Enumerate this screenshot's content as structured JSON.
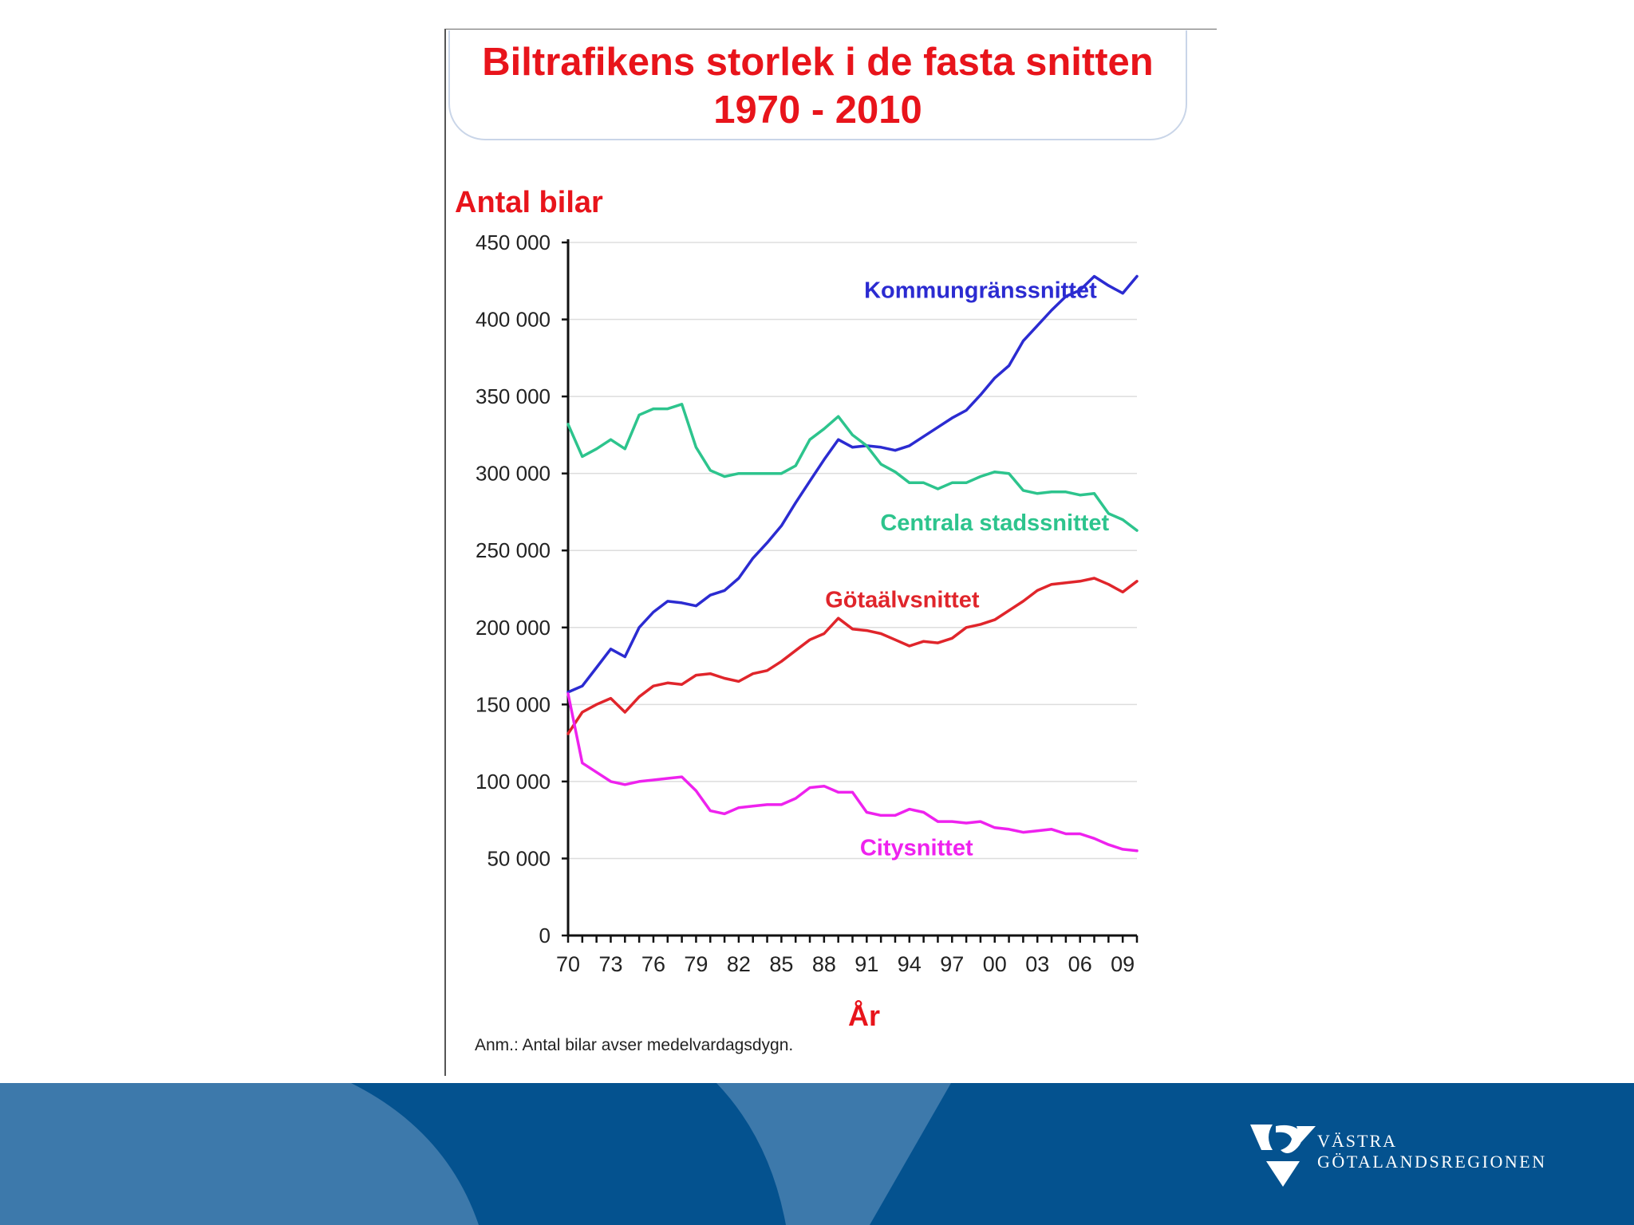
{
  "chart_data": {
    "type": "line",
    "title": "Biltrafikens storlek i de fasta snitten",
    "subtitle": "1970 - 2010",
    "ylabel": "Antal bilar",
    "xlabel": "År",
    "ylim": [
      0,
      450000
    ],
    "xlim": [
      1970,
      2010
    ],
    "y_ticks": [
      0,
      50000,
      100000,
      150000,
      200000,
      250000,
      300000,
      350000,
      400000,
      450000
    ],
    "y_tick_labels": [
      "0",
      "50 000",
      "100 000",
      "150 000",
      "200 000",
      "250 000",
      "300 000",
      "350 000",
      "400 000",
      "450 000"
    ],
    "x_tick_labels": [
      {
        "year": 1970,
        "label": "70"
      },
      {
        "year": 1973,
        "label": "73"
      },
      {
        "year": 1976,
        "label": "76"
      },
      {
        "year": 1979,
        "label": "79"
      },
      {
        "year": 1982,
        "label": "82"
      },
      {
        "year": 1985,
        "label": "85"
      },
      {
        "year": 1988,
        "label": "88"
      },
      {
        "year": 1991,
        "label": "91"
      },
      {
        "year": 1994,
        "label": "94"
      },
      {
        "year": 1997,
        "label": "97"
      },
      {
        "year": 2000,
        "label": "00"
      },
      {
        "year": 2003,
        "label": "03"
      },
      {
        "year": 2006,
        "label": "06"
      },
      {
        "year": 2009,
        "label": "09"
      }
    ],
    "x": [
      1970,
      1971,
      1972,
      1973,
      1974,
      1975,
      1976,
      1977,
      1978,
      1979,
      1980,
      1981,
      1982,
      1983,
      1984,
      1985,
      1986,
      1987,
      1988,
      1989,
      1990,
      1991,
      1992,
      1993,
      1994,
      1995,
      1996,
      1997,
      1998,
      1999,
      2000,
      2001,
      2002,
      2003,
      2004,
      2005,
      2006,
      2007,
      2008,
      2009,
      2010
    ],
    "grid": true,
    "series": [
      {
        "name": "Kommungränssnittet",
        "color": "#2b2bd1",
        "values": [
          158000,
          162000,
          174000,
          186000,
          181000,
          200000,
          210000,
          217000,
          216000,
          214000,
          221000,
          224000,
          232000,
          245000,
          255000,
          266000,
          281000,
          295000,
          309000,
          322000,
          317000,
          318000,
          317000,
          315000,
          318000,
          324000,
          330000,
          336000,
          341000,
          351000,
          362000,
          370000,
          386000,
          396000,
          406000,
          415000,
          419000,
          428000,
          422000,
          417000,
          428000
        ]
      },
      {
        "name": "Centrala stadssnittet",
        "color": "#2dc48d",
        "values": [
          332000,
          311000,
          316000,
          322000,
          316000,
          338000,
          342000,
          342000,
          345000,
          317000,
          302000,
          298000,
          300000,
          300000,
          300000,
          300000,
          305000,
          322000,
          329000,
          337000,
          325000,
          318000,
          306000,
          301000,
          294000,
          294000,
          290000,
          294000,
          294000,
          298000,
          301000,
          300000,
          289000,
          287000,
          288000,
          288000,
          286000,
          287000,
          274000,
          270000,
          263000
        ]
      },
      {
        "name": "Götaälvsnittet",
        "color": "#e0252b",
        "values": [
          131000,
          145000,
          150000,
          154000,
          145000,
          155000,
          162000,
          164000,
          163000,
          169000,
          170000,
          167000,
          165000,
          170000,
          172000,
          178000,
          185000,
          192000,
          196000,
          206000,
          199000,
          198000,
          196000,
          192000,
          188000,
          191000,
          190000,
          193000,
          200000,
          202000,
          205000,
          211000,
          217000,
          224000,
          228000,
          229000,
          230000,
          232000,
          228000,
          223000,
          230000
        ]
      },
      {
        "name": "Citysnittet",
        "color": "#ee22ee",
        "values": [
          157000,
          112000,
          106000,
          100000,
          98000,
          100000,
          101000,
          102000,
          103000,
          94000,
          81000,
          79000,
          83000,
          84000,
          85000,
          85000,
          89000,
          96000,
          97000,
          93000,
          93000,
          80000,
          78000,
          78000,
          82000,
          80000,
          74000,
          74000,
          73000,
          74000,
          70000,
          69000,
          67000,
          68000,
          69000,
          66000,
          66000,
          63000,
          59000,
          56000,
          55000
        ]
      }
    ]
  },
  "note": "Anm.: Antal bilar avser medelvardagsdygn.",
  "logo": {
    "line1": "VÄSTRA",
    "line2": "GÖTALANDSREGIONEN",
    "icon": "vgr-logo-icon"
  },
  "colors": {
    "title": "#e8141b",
    "footer_dark": "#04528f",
    "footer_light": "#3d79ab",
    "axis": "#111111",
    "grid": "#dddddd"
  }
}
